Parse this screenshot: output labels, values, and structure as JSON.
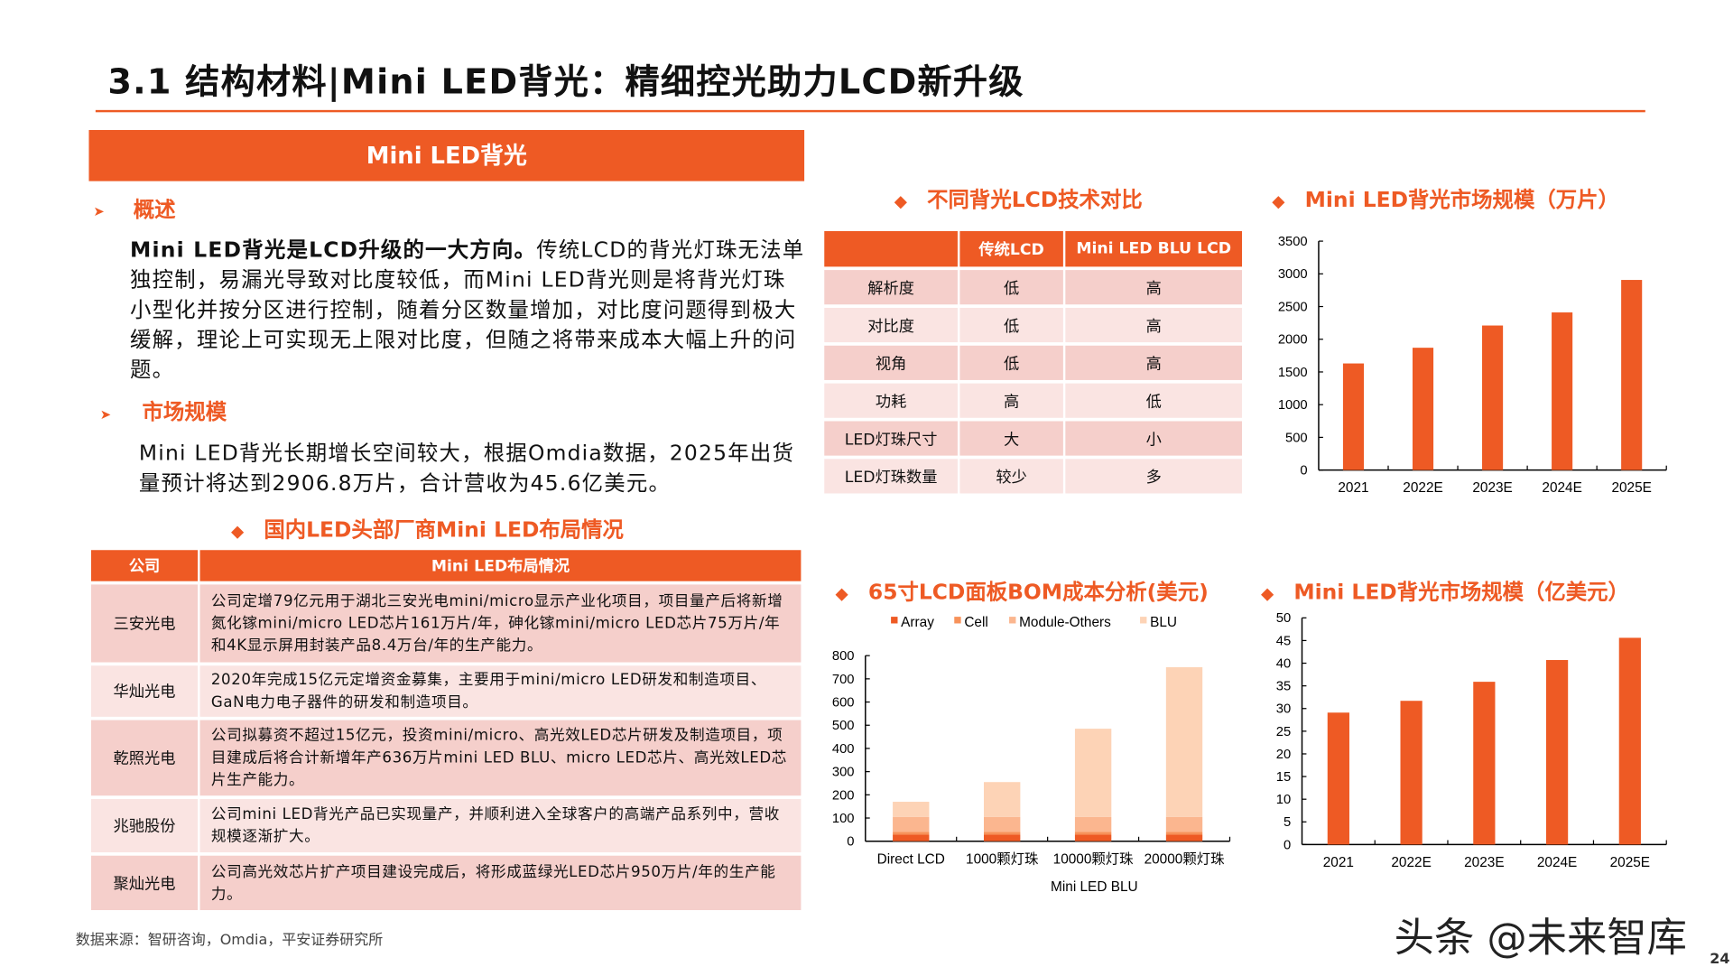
{
  "title": "3.1 结构材料|Mini LED背光：精细控光助力LCD新升级",
  "left": {
    "header": "Mini LED背光",
    "overview": {
      "heading": "概述",
      "bold": "Mini LED背光是LCD升级的一大方向。",
      "text": "传统LCD的背光灯珠无法单独控制，易漏光导致对比度较低，而Mini LED背光则是将背光灯珠小型化并按分区进行控制，随着分区数量增加，对比度问题得到极大缓解，理论上可实现无上限对比度，但随之将带来成本大幅上升的问题。"
    },
    "market": {
      "heading": "市场规模",
      "text": "Mini LED背光长期增长空间较大，根据Omdia数据，2025年出货量预计将达到2906.8万片，合计营收为45.6亿美元。"
    },
    "layout_table": {
      "title": "国内LED头部厂商Mini LED布局情况",
      "headers": [
        "公司",
        "Mini LED布局情况"
      ],
      "rows": [
        [
          "三安光电",
          "公司定增79亿元用于湖北三安光电mini/micro显示产业化项目，项目量产后将新增氮化镓mini/micro LED芯片161万片/年，砷化镓mini/micro LED芯片75万片/年和4K显示屏用封装产品8.4万台/年的生产能力。"
        ],
        [
          "华灿光电",
          "2020年完成15亿元定增资金募集，主要用于mini/micro LED研发和制造项目、GaN电力电子器件的研发和制造项目。"
        ],
        [
          "乾照光电",
          "公司拟募资不超过15亿元，投资mini/micro、高光效LED芯片研发及制造项目，项目建成后将合计新增年产636万片mini LED BLU、micro LED芯片、高光效LED芯片生产能力。"
        ],
        [
          "兆驰股份",
          "公司mini LED背光产品已实现量产，并顺利进入全球客户的高端产品系列中，营收规模逐渐扩大。"
        ],
        [
          "聚灿光电",
          "公司高光效芯片扩产项目建设完成后，将形成蓝绿光LED芯片950万片/年的生产能力。"
        ]
      ]
    },
    "source": "数据来源：智研咨询，Omdia，平安证券研究所"
  },
  "compare_table": {
    "title": "不同背光LCD技术对比",
    "headers": [
      "",
      "传统LCD",
      "Mini LED BLU LCD"
    ],
    "rows": [
      [
        "解析度",
        "低",
        "高"
      ],
      [
        "对比度",
        "低",
        "高"
      ],
      [
        "视角",
        "低",
        "高"
      ],
      [
        "功耗",
        "高",
        "低"
      ],
      [
        "LED灯珠尺寸",
        "大",
        "小"
      ],
      [
        "LED灯珠数量",
        "较少",
        "多"
      ]
    ]
  },
  "chart_data": [
    {
      "type": "bar",
      "title": "Mini LED背光市场规模（万片）",
      "categories": [
        "2021",
        "2022E",
        "2023E",
        "2024E",
        "2025E"
      ],
      "values": [
        1630,
        1870,
        2210,
        2410,
        2906.8
      ],
      "ylim": [
        0,
        3500
      ],
      "yticks": [
        0,
        500,
        1000,
        1500,
        2000,
        2500,
        3000,
        3500
      ],
      "color": "#EE5A24",
      "grid": false
    },
    {
      "type": "bar",
      "stacked": true,
      "title": "65寸LCD面板BOM成本分析(美元)",
      "categories": [
        "Direct LCD",
        "1000颗灯珠",
        "10000颗灯珠",
        "20000颗灯珠"
      ],
      "group_label": "Mini LED BLU",
      "series": [
        {
          "name": "Array",
          "values": [
            28,
            28,
            28,
            28
          ],
          "color": "#EE5A24"
        },
        {
          "name": "Cell",
          "values": [
            12,
            12,
            12,
            12
          ],
          "color": "#F7925A"
        },
        {
          "name": "Module-Others",
          "values": [
            65,
            65,
            65,
            65
          ],
          "color": "#FBB68F"
        },
        {
          "name": "BLU",
          "values": [
            65,
            150,
            380,
            645
          ],
          "color": "#FDD3B6"
        }
      ],
      "ylim": [
        0,
        800
      ],
      "yticks": [
        0,
        100,
        200,
        300,
        400,
        500,
        600,
        700,
        800
      ],
      "legend": "top",
      "grid": false
    },
    {
      "type": "bar",
      "title": "Mini LED背光市场规模（亿美元）",
      "categories": [
        "2021",
        "2022E",
        "2023E",
        "2024E",
        "2025E"
      ],
      "values": [
        29.1,
        31.7,
        35.9,
        40.7,
        45.6
      ],
      "ylim": [
        0,
        50
      ],
      "yticks": [
        0,
        5,
        10,
        15,
        20,
        25,
        30,
        35,
        40,
        45,
        50
      ],
      "color": "#EE5A24",
      "grid": false
    }
  ],
  "watermark": "头条 @未来智库",
  "page_number": "24",
  "colors": {
    "accent": "#EE5A24",
    "row_dark": "#F5CFCB",
    "row_light": "#FAE4E2"
  }
}
